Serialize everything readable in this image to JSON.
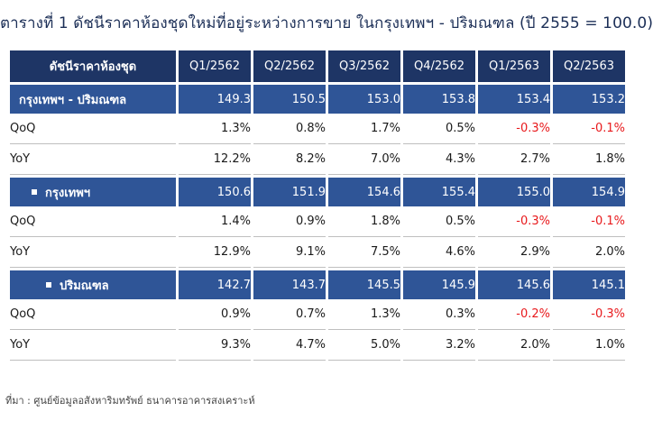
{
  "title": "ตารางที่ 1 ดัชนีราคาห้องชุดใหม่ที่อยู่ระหว่างการขาย ในกรุงเทพฯ - ปริมณฑล (ปี 2555 = 100.0)",
  "source": "ที่มา : ศูนย์ข้อมูลอสังหาริมทรัพย์ ธนาคารอาคารสงเคราะห์",
  "colors": {
    "header": "#1e3565",
    "section": "#2f5597",
    "negative": "#e8191c"
  },
  "chart_data": {
    "type": "table",
    "title": "ตารางที่ 1 ดัชนีราคาห้องชุดใหม่ที่อยู่ระหว่างการขาย ในกรุงเทพฯ - ปริมณฑล (ปี 2555 = 100.0)",
    "columns": [
      "ดัชนีราคาห้องชุด",
      "Q1/2562",
      "Q2/2562",
      "Q3/2562",
      "Q4/2562",
      "Q1/2563",
      "Q2/2563"
    ],
    "rows": [
      {
        "kind": "section",
        "label": "กรุงเทพฯ - ปริมณฑล",
        "values": [
          "149.3",
          "150.5",
          "153.0",
          "153.8",
          "153.4",
          "153.2"
        ]
      },
      {
        "kind": "sub",
        "label": "QoQ",
        "values": [
          "1.3%",
          "0.8%",
          "1.7%",
          "0.5%",
          "-0.3%",
          "-0.1%"
        ]
      },
      {
        "kind": "sub",
        "label": "YoY",
        "values": [
          "12.2%",
          "8.2%",
          "7.0%",
          "4.3%",
          "2.7%",
          "1.8%"
        ]
      },
      {
        "kind": "section-bullet",
        "label": "กรุงเทพฯ",
        "values": [
          "150.6",
          "151.9",
          "154.6",
          "155.4",
          "155.0",
          "154.9"
        ]
      },
      {
        "kind": "sub",
        "label": "QoQ",
        "values": [
          "1.4%",
          "0.9%",
          "1.8%",
          "0.5%",
          "-0.3%",
          "-0.1%"
        ]
      },
      {
        "kind": "sub",
        "label": "YoY",
        "values": [
          "12.9%",
          "9.1%",
          "7.5%",
          "4.6%",
          "2.9%",
          "2.0%"
        ]
      },
      {
        "kind": "section-bullet",
        "label": "ปริมณฑล",
        "values": [
          "142.7",
          "143.7",
          "145.5",
          "145.9",
          "145.6",
          "145.1"
        ]
      },
      {
        "kind": "sub",
        "label": "QoQ",
        "values": [
          "0.9%",
          "0.7%",
          "1.3%",
          "0.3%",
          "-0.2%",
          "-0.3%"
        ]
      },
      {
        "kind": "sub",
        "label": "YoY",
        "values": [
          "9.3%",
          "4.7%",
          "5.0%",
          "3.2%",
          "2.0%",
          "1.0%"
        ]
      }
    ]
  }
}
